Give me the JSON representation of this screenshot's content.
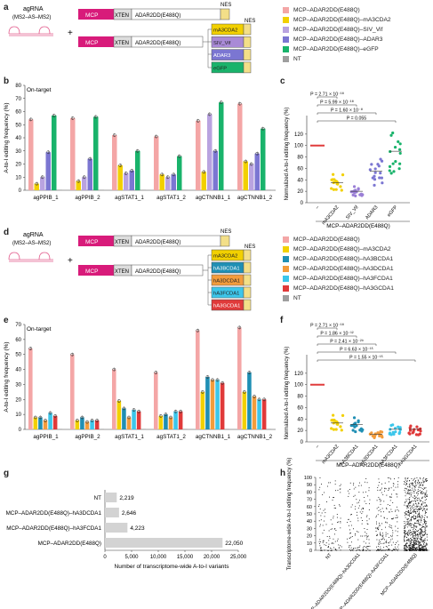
{
  "panels": {
    "a": "a",
    "b": "b",
    "c": "c",
    "d": "d",
    "e": "e",
    "f": "f",
    "g": "g",
    "h": "h"
  },
  "construct_a": {
    "agrna_label": "agRNA",
    "agrna_sub": "(MS2–AS–MS2)",
    "plus": "+",
    "nes": "NES",
    "mcp": "MCP",
    "xten": "XTEN",
    "adar": "ADAR2DD(E488Q)",
    "fusions": [
      "mA3CDA2",
      "SIV_Vif",
      "ADAR3",
      "eGFP"
    ]
  },
  "construct_d": {
    "agrna_label": "agRNA",
    "agrna_sub": "(MS2–AS–MS2)",
    "plus": "+",
    "nes": "NES",
    "mcp": "MCP",
    "xten": "XTEN",
    "adar": "ADAR2DD(E488Q)",
    "fusions": [
      "mA3CDA2",
      "hA3BCDA1",
      "hA3DCDA1",
      "hA3FCDA1",
      "hA3GCDA1"
    ]
  },
  "legend_top": [
    {
      "label": "MCP–ADAR2DD(E488Q)",
      "color": "#f4a6a6"
    },
    {
      "label": "MCP–ADAR2DD(E488Q)–mA3CDA2",
      "color": "#f2d000"
    },
    {
      "label": "MCP–ADAR2DD(E488Q)–SIV_Vif",
      "color": "#b9a3e0"
    },
    {
      "label": "MCP–ADAR2DD(E488Q)–ADAR3",
      "color": "#7b76d2"
    },
    {
      "label": "MCP–ADAR2DD(E488Q)–eGFP",
      "color": "#19b36b"
    },
    {
      "label": "NT",
      "color": "#9e9e9e"
    }
  ],
  "legend_mid": [
    {
      "label": "MCP–ADAR2DD(E488Q)",
      "color": "#f4a6a6"
    },
    {
      "label": "MCP–ADAR2DD(E488Q)–mA3CDA2",
      "color": "#f2d000"
    },
    {
      "label": "MCP–ADAR2DD(E488Q)–hA3BCDA1",
      "color": "#1f8fb4"
    },
    {
      "label": "MCP–ADAR2DD(E488Q)–hA3DCDA1",
      "color": "#f39c3c"
    },
    {
      "label": "MCP–ADAR2DD(E488Q)–hA3FCDA1",
      "color": "#3cc6ea"
    },
    {
      "label": "MCP–ADAR2DD(E488Q)–hA3GCDA1",
      "color": "#e03a3a"
    },
    {
      "label": "NT",
      "color": "#9e9e9e"
    }
  ],
  "chart_data": [
    {
      "panel": "b",
      "type": "bar",
      "title": "On-target",
      "ylabel": "A-to-I editing frequency (%)",
      "ylim": [
        0,
        80
      ],
      "yticks": [
        0,
        10,
        20,
        30,
        40,
        50,
        60,
        70,
        80
      ],
      "categories": [
        "agPPIB_1",
        "agPPIB_2",
        "agSTAT1_1",
        "agSTAT1_2",
        "agCTNNB1_1",
        "agCTNNB1_2"
      ],
      "series": [
        {
          "color": "#f4a6a6",
          "values": [
            54,
            55,
            42,
            41,
            53,
            66
          ]
        },
        {
          "color": "#f2d000",
          "values": [
            5,
            7,
            19,
            12,
            14,
            22
          ]
        },
        {
          "color": "#b9a3e0",
          "values": [
            10,
            10,
            13,
            10,
            58,
            20
          ]
        },
        {
          "color": "#7b76d2",
          "values": [
            29,
            24,
            15,
            12,
            30,
            28
          ]
        },
        {
          "color": "#19b36b",
          "values": [
            57,
            56,
            30,
            26,
            67,
            47
          ]
        },
        {
          "color": "#9e9e9e",
          "values": [
            0,
            0,
            0,
            0,
            0,
            0
          ]
        }
      ]
    },
    {
      "panel": "c",
      "type": "scatter",
      "ylabel": "Normalized A-to-I editing frequency (%)",
      "ylim": [
        0,
        140
      ],
      "yticks": [
        0,
        20,
        40,
        60,
        80,
        100,
        120
      ],
      "categories": [
        "–",
        "mA3CDA2",
        "SIV_Vif",
        "ADAR3",
        "eGFP"
      ],
      "xlabel": "MCP–ADAR2DD(E488Q)",
      "means": [
        100,
        35,
        20,
        55,
        90
      ],
      "colors": [
        "#e03a3a",
        "#f2d000",
        "#9a7fd6",
        "#7b76d2",
        "#19b36b"
      ],
      "pvalues": [
        "P = 2.71 × 10⁻¹⁸",
        "P = 5.99 × 10⁻¹⁸",
        "P = 1.60 × 10⁻⁸",
        "P = 0.055"
      ]
    },
    {
      "panel": "e",
      "type": "bar",
      "title": "On-target",
      "ylabel": "A-to-I editing frequency (%)",
      "ylim": [
        0,
        70
      ],
      "yticks": [
        0,
        10,
        20,
        30,
        40,
        50,
        60,
        70
      ],
      "categories": [
        "agPPIB_1",
        "agPPIB_2",
        "agSTAT1_1",
        "agSTAT1_2",
        "agCTNNB1_1",
        "agCTNNB1_2"
      ],
      "series": [
        {
          "color": "#f4a6a6",
          "values": [
            54,
            50,
            40,
            38,
            66,
            68
          ]
        },
        {
          "color": "#f2d000",
          "values": [
            8,
            6,
            19,
            9,
            25,
            25
          ]
        },
        {
          "color": "#1f8fb4",
          "values": [
            8,
            8,
            14,
            10,
            35,
            38
          ]
        },
        {
          "color": "#f39c3c",
          "values": [
            6,
            5,
            8,
            8,
            33,
            22
          ]
        },
        {
          "color": "#3cc6ea",
          "values": [
            11,
            6,
            13,
            12,
            33,
            20
          ]
        },
        {
          "color": "#e03a3a",
          "values": [
            9,
            6,
            12,
            12,
            31,
            20
          ]
        },
        {
          "color": "#9e9e9e",
          "values": [
            0,
            0,
            0,
            0,
            0,
            0
          ]
        }
      ]
    },
    {
      "panel": "f",
      "type": "scatter",
      "ylabel": "Normalized A-to-I editing frequency (%)",
      "ylim": [
        0,
        140
      ],
      "yticks": [
        0,
        20,
        40,
        60,
        80,
        100,
        120
      ],
      "categories": [
        "–",
        "mA3CDA2",
        "hA3BCDA1",
        "hA3DCDA1",
        "hA3FCDA1",
        "hA3GCDA1"
      ],
      "xlabel": "MCP–ADAR2DD(E488Q)",
      "means": [
        100,
        33,
        30,
        13,
        22,
        22
      ],
      "colors": [
        "#e03a3a",
        "#f2d000",
        "#1f8fb4",
        "#f39c3c",
        "#3cc6ea",
        "#e03a3a"
      ],
      "pvalues": [
        "P = 2.71 × 10⁻¹⁸",
        "P = 1.86 × 10⁻¹²",
        "P = 2.41 × 10⁻²⁰",
        "P = 6.63 × 10⁻¹⁵",
        "P = 1.55 × 10⁻¹⁵"
      ]
    },
    {
      "panel": "g",
      "type": "bar",
      "xlabel": "Number of transcriptome-wide A-to-I variants",
      "xlim": [
        0,
        25000
      ],
      "xticks": [
        "0",
        "5,000",
        "10,000",
        "15,000",
        "20,000",
        "25,000"
      ],
      "categories": [
        "NT",
        "MCP–ADAR2DD(E488Q)–hA3DCDA1",
        "MCP–ADAR2DD(E488Q)–hA3FCDA1",
        "MCP–ADAR2DD(E488Q)"
      ],
      "values": [
        2219,
        2646,
        4223,
        22050
      ],
      "value_labels": [
        "2,219",
        "2,646",
        "4,223",
        "22,050"
      ],
      "color": "#d3d3d3"
    },
    {
      "panel": "h",
      "type": "scatter",
      "ylabel": "Transcriptome-wide A-to-I editing frequency (%)",
      "ylim": [
        0,
        100
      ],
      "yticks": [
        0,
        10,
        20,
        30,
        40,
        50,
        60,
        70,
        80,
        90,
        100
      ],
      "categories": [
        "NT",
        "MCP–ADAR2DD(E488Q)–hA3DCDA1",
        "MCP–ADAR2DD(E488Q)–hA3FCDA1",
        "MCP–ADAR2DD(E488Q)"
      ]
    }
  ]
}
